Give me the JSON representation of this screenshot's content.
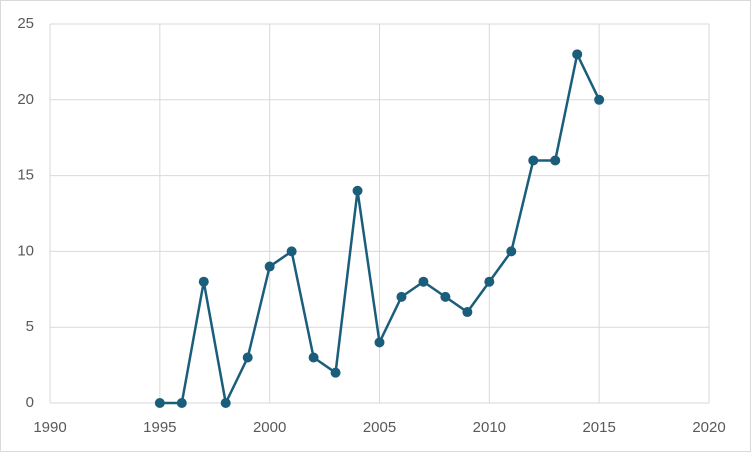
{
  "chart_data": {
    "type": "line",
    "x": [
      1995,
      1996,
      1997,
      1998,
      1999,
      2000,
      2001,
      2002,
      2003,
      2004,
      2005,
      2006,
      2007,
      2008,
      2009,
      2010,
      2011,
      2012,
      2013,
      2014,
      2015
    ],
    "values": [
      0,
      0,
      8,
      0,
      3,
      9,
      10,
      3,
      2,
      14,
      4,
      7,
      8,
      7,
      6,
      8,
      10,
      16,
      16,
      23,
      20
    ],
    "color": "#1b5e7b",
    "xlim": [
      1990,
      2020
    ],
    "xticks": [
      1990,
      1995,
      2000,
      2005,
      2010,
      2015,
      2020
    ],
    "ylim": [
      0,
      25
    ],
    "yticks": [
      0,
      5,
      10,
      15,
      20,
      25
    ],
    "grid": true,
    "markers": true
  }
}
